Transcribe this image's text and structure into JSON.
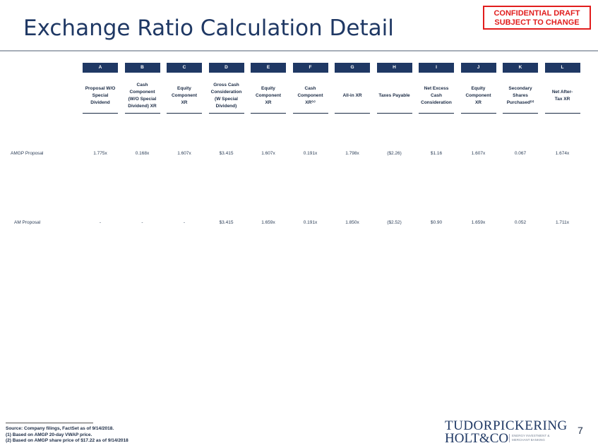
{
  "header": {
    "title": "Exchange Ratio Calculation Detail",
    "confidential_line1": "CONFIDENTIAL DRAFT",
    "confidential_line2": "SUBJECT TO CHANGE"
  },
  "columns": [
    {
      "letter": "A",
      "header": "Proposal W/O\nSpecial\nDividend"
    },
    {
      "letter": "B",
      "header": "Cash\nComponent\n(W/O Special\nDividend) XR"
    },
    {
      "letter": "C",
      "header": "Equity\nComponent\nXR"
    },
    {
      "letter": "D",
      "header": "Gross Cash\nConsideration\n(W Special\nDividend)"
    },
    {
      "letter": "E",
      "header": "Equity\nComponent\nXR"
    },
    {
      "letter": "F",
      "header": "Cash\nComponent\nXR⁽¹⁾"
    },
    {
      "letter": "G",
      "header": "All-in XR"
    },
    {
      "letter": "H",
      "header": "Taxes Payable"
    },
    {
      "letter": "I",
      "header": "Net Excess\nCash\nConsideration"
    },
    {
      "letter": "J",
      "header": "Equity\nComponent\nXR"
    },
    {
      "letter": "K",
      "header": "Secondary\nShares\nPurchased⁽²⁾"
    },
    {
      "letter": "L",
      "header": "Net After-\nTax XR"
    }
  ],
  "rows": [
    {
      "label": "AMGP Proposal",
      "values": [
        "1.775x",
        "0.168x",
        "1.607x",
        "$3.415",
        "1.607x",
        "0.191x",
        "1.798x",
        "($2.26)",
        "$1.16",
        "1.607x",
        "0.067",
        "1.674x"
      ]
    },
    {
      "label": "AM Proposal",
      "values": [
        "-",
        "-",
        "-",
        "$3.415",
        "1.659x",
        "0.191x",
        "1.850x",
        "($2.52)",
        "$0.90",
        "1.659x",
        "0.052",
        "1.711x"
      ]
    }
  ],
  "footnotes": {
    "source": "Source: Company filings, FactSet as of 9/14/2018.",
    "note1": "(1)     Based on AMGP 20-day VWAP price.",
    "note2": "(2)     Based on AMGP share price of $17.22 as of 9/14/2018"
  },
  "logo": {
    "line1": "TUDORPICKERING",
    "line2": "HOLT&CO",
    "tagline": "ENERGY INVESTMENT &\nMERCHANT BANKING"
  },
  "page_number": "7"
}
